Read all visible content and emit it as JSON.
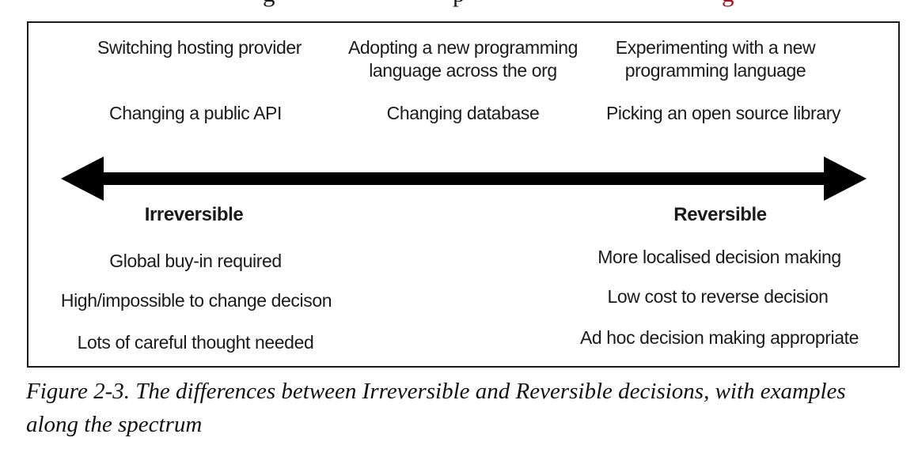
{
  "top_cropped_line": {
    "fragments": [
      {
        "char": "g"
      },
      {
        "char": "p"
      },
      {
        "char": "g"
      }
    ]
  },
  "figure": {
    "examples": {
      "left": [
        "Switching hosting provider",
        "Changing a public API"
      ],
      "middle": [
        "Adopting a new programming language across the org",
        "Changing database"
      ],
      "right": [
        "Experimenting with a new programming language",
        "Picking an open source library"
      ]
    },
    "poles": {
      "left_label": "Irreversible",
      "right_label": "Reversible"
    },
    "irreversible_traits": [
      "Global buy-in required",
      "High/impossible to change decison",
      "Lots of careful thought needed"
    ],
    "reversible_traits": [
      "More localised decision making",
      "Low cost to reverse decision",
      "Ad hoc decision making appropriate"
    ]
  },
  "caption": {
    "lines": [
      "Figure 2-3. The differences between Irreversible and Reversible decisions, with examples",
      "along the spectrum"
    ],
    "full_text": "Figure 2-3. The differences between Irreversible and Reversible decisions, with examples along the spectrum"
  },
  "colors": {
    "text": "#1a1a1a",
    "arrow": "#000000",
    "box_border": "#1a1a1a",
    "fragment_red": "#a41521",
    "background": "#ffffff"
  }
}
